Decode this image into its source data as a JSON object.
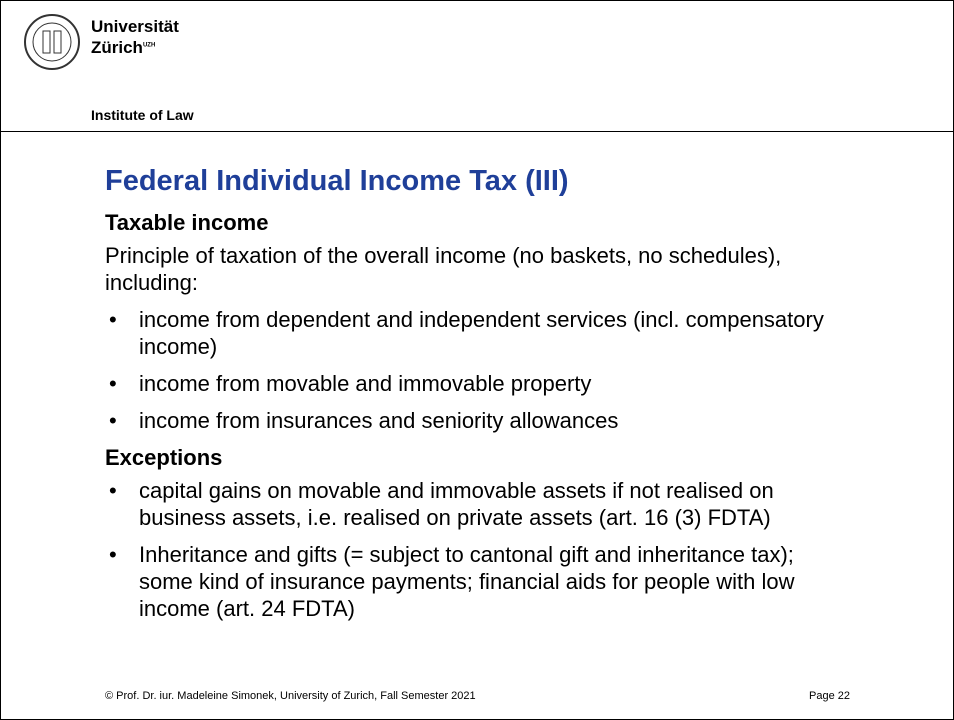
{
  "header": {
    "university_line1": "Universität",
    "university_line2": "Zürich",
    "uzh": "UZH",
    "institute": "Institute of Law"
  },
  "slide": {
    "title": "Federal Individual Income Tax (III)",
    "section1": {
      "heading": "Taxable income",
      "intro_line1": "Principle of taxation of the overall income (no baskets, no schedules),",
      "intro_line2": "including:",
      "bullets": [
        [
          "income from dependent and independent services (incl. compensatory",
          "income)"
        ],
        [
          "income from movable and immovable property"
        ],
        [
          "income from insurances and seniority allowances"
        ]
      ]
    },
    "section2": {
      "heading": "Exceptions",
      "bullets": [
        [
          "capital gains on movable and immovable assets if not realised on",
          "business assets, i.e. realised on private assets (art. 16 (3) FDTA)"
        ],
        [
          "Inheritance and gifts (= subject to cantonal gift and inheritance tax);",
          "some kind of insurance payments; financial aids for people with low",
          "income (art. 24 FDTA)"
        ]
      ]
    }
  },
  "footer": {
    "copyright": "© Prof. Dr. iur. Madeleine Simonek, University of Zurich, Fall Semester 2021",
    "page": "Page 22"
  }
}
